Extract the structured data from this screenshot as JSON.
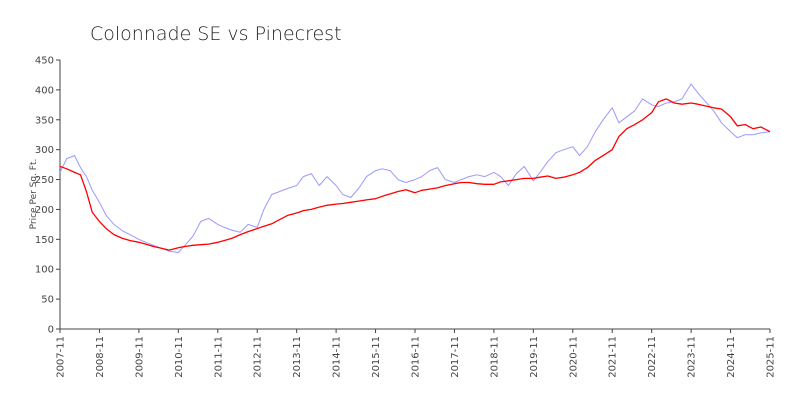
{
  "chart_data": {
    "type": "line",
    "title": "Colonnade SE vs Pinecrest",
    "xlabel": "",
    "ylabel": "Price Per Sq. Ft.",
    "ylim": [
      0,
      450
    ],
    "yticks": [
      0,
      50,
      100,
      150,
      200,
      250,
      300,
      350,
      400,
      450
    ],
    "xlim": [
      2007.83,
      2025.83
    ],
    "xticks": [
      {
        "value": 2007.83,
        "label": "2007-11"
      },
      {
        "value": 2008.83,
        "label": "2008-11"
      },
      {
        "value": 2009.83,
        "label": "2009-11"
      },
      {
        "value": 2010.83,
        "label": "2010-11"
      },
      {
        "value": 2011.83,
        "label": "2011-11"
      },
      {
        "value": 2012.83,
        "label": "2012-11"
      },
      {
        "value": 2013.83,
        "label": "2013-11"
      },
      {
        "value": 2014.83,
        "label": "2014-11"
      },
      {
        "value": 2015.83,
        "label": "2015-11"
      },
      {
        "value": 2016.83,
        "label": "2016-11"
      },
      {
        "value": 2017.83,
        "label": "2017-11"
      },
      {
        "value": 2018.83,
        "label": "2018-11"
      },
      {
        "value": 2019.83,
        "label": "2019-11"
      },
      {
        "value": 2020.83,
        "label": "2020-11"
      },
      {
        "value": 2021.83,
        "label": "2021-11"
      },
      {
        "value": 2022.83,
        "label": "2022-11"
      },
      {
        "value": 2023.83,
        "label": "2023-11"
      },
      {
        "value": 2024.83,
        "label": "2024-11"
      },
      {
        "value": 2025.83,
        "label": "2025-11"
      }
    ],
    "grid": false,
    "legend": "none",
    "series": [
      {
        "name": "Pinecrest",
        "color": "#ff0000",
        "x": [
          2007.83,
          2008.0,
          2008.2,
          2008.35,
          2008.5,
          2008.65,
          2008.83,
          2009.0,
          2009.2,
          2009.4,
          2009.6,
          2009.83,
          2010.0,
          2010.2,
          2010.4,
          2010.6,
          2010.83,
          2011.0,
          2011.2,
          2011.4,
          2011.6,
          2011.83,
          2012.0,
          2012.2,
          2012.4,
          2012.6,
          2012.83,
          2013.0,
          2013.2,
          2013.4,
          2013.6,
          2013.83,
          2014.0,
          2014.2,
          2014.4,
          2014.6,
          2014.83,
          2015.0,
          2015.2,
          2015.4,
          2015.6,
          2015.83,
          2016.0,
          2016.2,
          2016.4,
          2016.6,
          2016.83,
          2017.0,
          2017.2,
          2017.4,
          2017.6,
          2017.83,
          2018.0,
          2018.2,
          2018.4,
          2018.6,
          2018.83,
          2019.0,
          2019.2,
          2019.4,
          2019.6,
          2019.83,
          2020.0,
          2020.2,
          2020.4,
          2020.6,
          2020.83,
          2021.0,
          2021.2,
          2021.4,
          2021.6,
          2021.83,
          2022.0,
          2022.2,
          2022.4,
          2022.6,
          2022.83,
          2023.0,
          2023.2,
          2023.4,
          2023.6,
          2023.83,
          2024.0,
          2024.2,
          2024.4,
          2024.6,
          2024.83,
          2025.0,
          2025.2,
          2025.4,
          2025.6,
          2025.83
        ],
        "values": [
          272,
          268,
          262,
          258,
          230,
          195,
          180,
          168,
          158,
          152,
          148,
          145,
          142,
          138,
          135,
          132,
          136,
          138,
          140,
          141,
          142,
          145,
          148,
          152,
          158,
          163,
          168,
          172,
          176,
          183,
          190,
          194,
          198,
          200,
          204,
          207,
          209,
          210,
          212,
          214,
          216,
          218,
          222,
          226,
          230,
          233,
          228,
          232,
          234,
          236,
          240,
          243,
          245,
          245,
          243,
          242,
          242,
          246,
          248,
          250,
          252,
          252,
          254,
          256,
          252,
          254,
          258,
          262,
          270,
          282,
          290,
          300,
          322,
          335,
          342,
          350,
          362,
          380,
          385,
          378,
          376,
          378,
          376,
          373,
          370,
          368,
          355,
          340,
          342,
          335,
          338,
          330
        ]
      },
      {
        "name": "Colonnade SE",
        "color": "#9999ff",
        "x": [
          2007.83,
          2008.0,
          2008.2,
          2008.35,
          2008.5,
          2008.65,
          2008.83,
          2009.0,
          2009.2,
          2009.4,
          2009.6,
          2009.83,
          2010.0,
          2010.2,
          2010.4,
          2010.6,
          2010.83,
          2011.0,
          2011.2,
          2011.4,
          2011.6,
          2011.83,
          2012.0,
          2012.2,
          2012.4,
          2012.6,
          2012.83,
          2013.0,
          2013.2,
          2013.4,
          2013.6,
          2013.83,
          2014.0,
          2014.2,
          2014.4,
          2014.6,
          2014.83,
          2015.0,
          2015.2,
          2015.4,
          2015.6,
          2015.83,
          2016.0,
          2016.2,
          2016.4,
          2016.6,
          2016.83,
          2017.0,
          2017.2,
          2017.4,
          2017.6,
          2017.83,
          2018.0,
          2018.2,
          2018.4,
          2018.6,
          2018.83,
          2019.0,
          2019.2,
          2019.4,
          2019.6,
          2019.83,
          2020.0,
          2020.2,
          2020.4,
          2020.6,
          2020.83,
          2021.0,
          2021.2,
          2021.4,
          2021.6,
          2021.83,
          2022.0,
          2022.2,
          2022.4,
          2022.6,
          2022.83,
          2023.0,
          2023.2,
          2023.4,
          2023.6,
          2023.83,
          2024.0,
          2024.2,
          2024.4,
          2024.6,
          2024.83,
          2025.0,
          2025.2,
          2025.4,
          2025.6,
          2025.83
        ],
        "values": [
          262,
          285,
          290,
          270,
          255,
          232,
          212,
          190,
          175,
          165,
          158,
          150,
          145,
          140,
          135,
          130,
          128,
          140,
          155,
          180,
          185,
          175,
          170,
          165,
          162,
          175,
          170,
          200,
          225,
          230,
          235,
          240,
          255,
          260,
          240,
          255,
          240,
          225,
          220,
          235,
          255,
          265,
          268,
          265,
          250,
          245,
          250,
          255,
          265,
          270,
          250,
          245,
          250,
          255,
          258,
          255,
          262,
          255,
          240,
          260,
          272,
          248,
          262,
          280,
          295,
          300,
          305,
          290,
          305,
          330,
          350,
          370,
          345,
          355,
          365,
          385,
          375,
          372,
          378,
          380,
          385,
          410,
          395,
          380,
          365,
          345,
          330,
          320,
          325,
          325,
          328,
          330
        ]
      }
    ]
  }
}
